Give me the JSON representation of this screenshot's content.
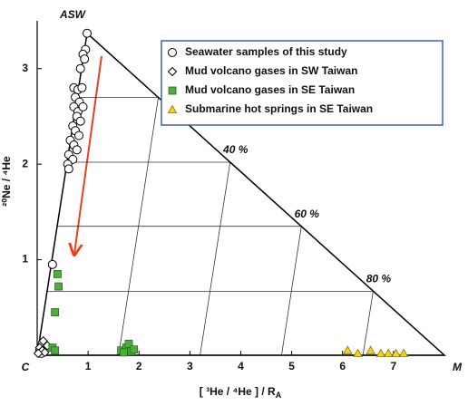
{
  "chart_data": {
    "type": "scatter",
    "ylabel": "²⁰Ne / ⁴He",
    "xlabel": {
      "text": "[ ³He / ⁴He ] / R",
      "subscript": "A"
    },
    "corner_labels": [
      "ASW",
      "C",
      "M"
    ],
    "xlim": [
      0,
      8
    ],
    "ylim": [
      0,
      3.5
    ],
    "xticks": [
      1,
      2,
      3,
      4,
      5,
      6,
      7
    ],
    "yticks": [
      1,
      2,
      3
    ],
    "triangle": {
      "x": [
        0,
        0.98,
        8,
        0
      ],
      "y": [
        0,
        3.37,
        0,
        0
      ]
    },
    "mixing_lines": [
      {
        "x": [
          0.78,
          2.38
        ],
        "y": [
          2.7,
          2.7
        ]
      },
      {
        "x": [
          0.59,
          3.79
        ],
        "y": [
          2.02,
          2.02
        ]
      },
      {
        "x": [
          0.39,
          5.19
        ],
        "y": [
          1.35,
          1.35
        ]
      },
      {
        "x": [
          0.2,
          6.6
        ],
        "y": [
          0.67,
          0.67
        ]
      },
      {
        "x": [
          2.38,
          1.6
        ],
        "y": [
          2.7,
          0
        ]
      },
      {
        "x": [
          3.79,
          3.2
        ],
        "y": [
          2.02,
          0
        ]
      },
      {
        "x": [
          5.19,
          4.8
        ],
        "y": [
          1.35,
          0
        ]
      },
      {
        "x": [
          6.6,
          6.4
        ],
        "y": [
          0.67,
          0
        ]
      }
    ],
    "mixing_labels": [
      {
        "text": "40 %",
        "line": 5
      },
      {
        "text": "60 %",
        "line": 6
      },
      {
        "text": "80 %",
        "line": 7
      }
    ],
    "series": [
      {
        "name": "Seawater samples of this study",
        "marker": "circle",
        "color": "#ffffff",
        "x": [
          0.98,
          0.95,
          0.9,
          0.93,
          0.85,
          0.72,
          0.8,
          0.88,
          0.75,
          0.83,
          0.72,
          0.8,
          0.9,
          0.78,
          0.85,
          0.7,
          0.75,
          0.82,
          0.65,
          0.72,
          0.78,
          0.62,
          0.7,
          0.6,
          0.62,
          0.3,
          0.1,
          0.05,
          0.08
        ],
        "y": [
          3.37,
          3.2,
          3.15,
          3.1,
          3.0,
          2.8,
          2.78,
          2.8,
          2.7,
          2.65,
          2.6,
          2.55,
          2.6,
          2.5,
          2.45,
          2.4,
          2.35,
          2.3,
          2.25,
          2.2,
          2.15,
          2.1,
          2.05,
          2.0,
          1.95,
          0.95,
          0.12,
          0.05,
          0.02
        ]
      },
      {
        "name": "Mud volcano gases in SW Taiwan",
        "marker": "diamond",
        "color": "#ffffff",
        "x": [
          0.05,
          0.1,
          0.15,
          0.02,
          0.2,
          0.12
        ],
        "y": [
          0.08,
          0.05,
          0.03,
          0.02,
          0.1,
          0.15
        ]
      },
      {
        "name": "Mud volcano gases in SE Taiwan",
        "marker": "square",
        "color": "#4caf3c",
        "x": [
          0.4,
          0.42,
          0.35,
          0.3,
          0.35,
          1.65,
          1.75,
          1.8,
          1.85,
          1.9,
          1.7
        ],
        "y": [
          0.85,
          0.72,
          0.45,
          0.08,
          0.05,
          0.05,
          0.08,
          0.12,
          0.04,
          0.06,
          0.03
        ]
      },
      {
        "name": "Submarine hot springs in SE Taiwan",
        "marker": "triangle",
        "color": "#f5d21e",
        "x": [
          6.1,
          6.3,
          6.55,
          6.75,
          6.9,
          7.05,
          7.2
        ],
        "y": [
          0.05,
          0.02,
          0.05,
          0.02,
          0.02,
          0.02,
          0.02
        ]
      }
    ]
  }
}
